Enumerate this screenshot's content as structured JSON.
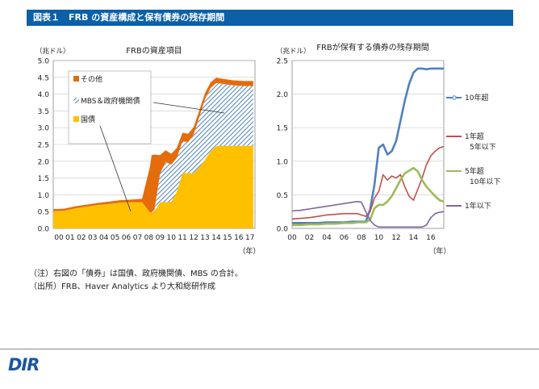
{
  "header": {
    "title": "図表１　FRB の資産構成と保有債券の残存期間"
  },
  "notes": {
    "line1": "（注）右図の「債券」は国債、政府機関債、MBS の合計。",
    "line2": "（出所）FRB、Haver Analytics より大和総研作成"
  },
  "logo": {
    "text": "DIR"
  },
  "colors": {
    "other": "#e46c0a",
    "mbs": "#4f81bd",
    "treasury": "#ffc000",
    "over10": "#4f81bd",
    "y1to5": "#c0504d",
    "y5to10": "#9bbb59",
    "under1": "#8064a2"
  },
  "chart_data": [
    {
      "type": "area",
      "title": "FRBの資産項目",
      "ylabel": "（兆ドル）",
      "xlabel": "（年）",
      "ylim": [
        0,
        5.0
      ],
      "yticks": [
        "0.0",
        "0.5",
        "1.0",
        "1.5",
        "2.0",
        "2.5",
        "3.0",
        "3.5",
        "4.0",
        "4.5",
        "5.0"
      ],
      "xticks": [
        "00",
        "01",
        "02",
        "03",
        "04",
        "05",
        "06",
        "07",
        "08",
        "09",
        "10",
        "11",
        "12",
        "13",
        "14",
        "15",
        "16",
        "17"
      ],
      "grid": true,
      "legend_position": "top-left",
      "stacked": true,
      "x": [
        2000.0,
        2001.0,
        2002.0,
        2003.0,
        2004.0,
        2005.0,
        2006.0,
        2007.0,
        2007.9,
        2008.6,
        2008.75,
        2009.0,
        2009.5,
        2010.0,
        2010.5,
        2011.0,
        2011.5,
        2012.0,
        2012.5,
        2013.0,
        2013.5,
        2014.0,
        2014.5,
        2015.0,
        2016.0,
        2017.0,
        2017.8
      ],
      "series": [
        {
          "name": "国債",
          "color": "#ffc000",
          "values": [
            0.51,
            0.53,
            0.6,
            0.65,
            0.7,
            0.73,
            0.77,
            0.78,
            0.78,
            0.48,
            0.48,
            0.5,
            0.78,
            0.78,
            0.8,
            1.1,
            1.65,
            1.65,
            1.65,
            1.82,
            2.05,
            2.3,
            2.45,
            2.46,
            2.46,
            2.46,
            2.46
          ]
        },
        {
          "name": "MBS＆政府機関債",
          "color": "#4f81bd",
          "values": [
            0.0,
            0.0,
            0.0,
            0.0,
            0.0,
            0.0,
            0.0,
            0.0,
            0.0,
            0.0,
            0.0,
            0.05,
            0.85,
            1.2,
            1.1,
            1.0,
            0.95,
            0.92,
            1.15,
            1.5,
            1.8,
            1.88,
            1.88,
            1.85,
            1.8,
            1.78,
            1.78
          ]
        },
        {
          "name": "その他",
          "color": "#e46c0a",
          "values": [
            0.06,
            0.06,
            0.06,
            0.06,
            0.06,
            0.07,
            0.07,
            0.08,
            0.1,
            1.35,
            1.7,
            1.65,
            0.55,
            0.35,
            0.32,
            0.3,
            0.25,
            0.25,
            0.22,
            0.2,
            0.18,
            0.17,
            0.16,
            0.15,
            0.15,
            0.15,
            0.15
          ]
        }
      ]
    },
    {
      "type": "line",
      "title": "FRBが保有する債券の残存期間",
      "ylabel": "（兆ドル）",
      "xlabel": "（年）",
      "ylim": [
        0,
        2.5
      ],
      "yticks": [
        "0.0",
        "0.5",
        "1.0",
        "1.5",
        "2.0",
        "2.5"
      ],
      "xticks": [
        "00",
        "02",
        "04",
        "06",
        "08",
        "10",
        "12",
        "14",
        "16"
      ],
      "grid": true,
      "legend_position": "right",
      "x": [
        2000.0,
        2001.0,
        2002.0,
        2003.0,
        2004.0,
        2005.0,
        2006.0,
        2007.0,
        2007.5,
        2008.0,
        2008.5,
        2009.0,
        2009.5,
        2010.0,
        2010.5,
        2011.0,
        2011.5,
        2012.0,
        2012.5,
        2013.0,
        2013.5,
        2014.0,
        2014.5,
        2015.0,
        2015.5,
        2016.0,
        2016.5,
        2017.0,
        2017.5
      ],
      "series": [
        {
          "name": "10年超",
          "color": "#4f81bd",
          "values": [
            0.08,
            0.08,
            0.08,
            0.08,
            0.09,
            0.09,
            0.09,
            0.1,
            0.1,
            0.1,
            0.1,
            0.28,
            0.65,
            1.2,
            1.25,
            1.1,
            1.15,
            1.3,
            1.6,
            1.9,
            2.15,
            2.32,
            2.38,
            2.38,
            2.37,
            2.38,
            2.38,
            2.38,
            2.38
          ]
        },
        {
          "name": "1年超\n5年以下",
          "color": "#c0504d",
          "values": [
            0.14,
            0.15,
            0.16,
            0.18,
            0.2,
            0.21,
            0.22,
            0.22,
            0.22,
            0.2,
            0.18,
            0.25,
            0.45,
            0.55,
            0.8,
            0.72,
            0.78,
            0.75,
            0.8,
            0.62,
            0.48,
            0.42,
            0.58,
            0.75,
            0.95,
            1.08,
            1.15,
            1.2,
            1.22
          ]
        },
        {
          "name": "5年超\n10年以下",
          "color": "#9bbb59",
          "values": [
            0.05,
            0.05,
            0.06,
            0.06,
            0.07,
            0.07,
            0.08,
            0.08,
            0.09,
            0.09,
            0.09,
            0.13,
            0.3,
            0.35,
            0.35,
            0.4,
            0.48,
            0.6,
            0.72,
            0.82,
            0.86,
            0.9,
            0.85,
            0.72,
            0.62,
            0.55,
            0.48,
            0.42,
            0.4
          ]
        },
        {
          "name": "1年以下",
          "color": "#8064a2",
          "values": [
            0.26,
            0.27,
            0.29,
            0.31,
            0.33,
            0.35,
            0.37,
            0.39,
            0.4,
            0.39,
            0.25,
            0.12,
            0.05,
            0.02,
            0.02,
            0.02,
            0.02,
            0.02,
            0.02,
            0.02,
            0.02,
            0.02,
            0.02,
            0.02,
            0.05,
            0.16,
            0.22,
            0.24,
            0.25
          ]
        }
      ]
    }
  ]
}
